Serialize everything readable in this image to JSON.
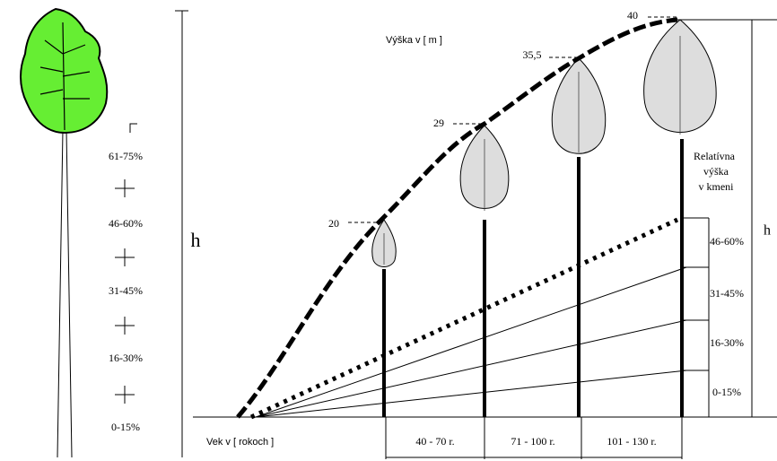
{
  "left_panel": {
    "height_symbol": "h",
    "segments": [
      "61-75%",
      "46-60%",
      "31-45%",
      "16-30%",
      "0-15%"
    ]
  },
  "right_panel": {
    "y_axis_label": "Výška v [ m ]",
    "x_axis_label": "Vek v [ rokoch ]",
    "height_labels": [
      "20",
      "29",
      "35,5",
      "40"
    ],
    "age_groups": [
      "40 - 70 r.",
      "71 - 100 r.",
      "101 - 130 r."
    ],
    "relative_title": [
      "Relatívna",
      "výška",
      "v kmeni"
    ],
    "relative_segments": [
      "46-60%",
      "31-45%",
      "16-30%",
      "0-15%"
    ],
    "height_symbol": "h"
  }
}
